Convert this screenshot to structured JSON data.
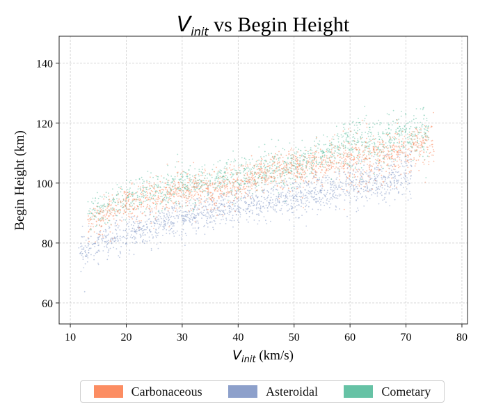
{
  "chart_data": {
    "type": "scatter",
    "title": "V_init vs Begin Height",
    "title_parts": {
      "symbol": "V",
      "subscript": "init",
      "rest": " vs Begin Height"
    },
    "xlabel": "V_init (km/s)",
    "xlabel_parts": {
      "symbol": "V",
      "subscript": "init",
      "rest": " (km/s)"
    },
    "ylabel": "Begin Height (km)",
    "xlim": [
      8,
      81
    ],
    "ylim": [
      53,
      149
    ],
    "xticks": [
      10,
      20,
      30,
      40,
      50,
      60,
      70,
      80
    ],
    "yticks": [
      60,
      80,
      100,
      120,
      140
    ],
    "grid": true,
    "legend_position": "bottom-center, below plot",
    "series": [
      {
        "name": "Asteroidal",
        "color": "#8da0cb",
        "trend": [
          [
            12,
            77
          ],
          [
            15,
            80
          ],
          [
            20,
            83
          ],
          [
            25,
            86
          ],
          [
            30,
            88.5
          ],
          [
            35,
            90.5
          ],
          [
            40,
            92
          ],
          [
            45,
            94
          ],
          [
            50,
            95.5
          ],
          [
            55,
            97
          ],
          [
            60,
            99
          ],
          [
            65,
            101
          ],
          [
            70,
            103
          ]
        ],
        "x_range": [
          11.5,
          71
        ]
      },
      {
        "name": "Carbonaceous",
        "color": "#fc8d62",
        "trend": [
          [
            13,
            86
          ],
          [
            15,
            89
          ],
          [
            20,
            93
          ],
          [
            25,
            95.5
          ],
          [
            30,
            97.5
          ],
          [
            35,
            97
          ],
          [
            40,
            100
          ],
          [
            45,
            103
          ],
          [
            50,
            105
          ],
          [
            55,
            106.5
          ],
          [
            60,
            107.5
          ],
          [
            65,
            109
          ],
          [
            70,
            111
          ],
          [
            74,
            113
          ]
        ],
        "x_range": [
          13,
          75
        ]
      },
      {
        "name": "Cometary",
        "color": "#66c2a5",
        "trend": [
          [
            13,
            89
          ],
          [
            15,
            91
          ],
          [
            20,
            95
          ],
          [
            25,
            97.5
          ],
          [
            30,
            99.5
          ],
          [
            35,
            100.5
          ],
          [
            40,
            102
          ],
          [
            45,
            104
          ],
          [
            50,
            106
          ],
          [
            55,
            109
          ],
          [
            60,
            113
          ],
          [
            65,
            114
          ],
          [
            70,
            116
          ],
          [
            74,
            116
          ]
        ],
        "x_range": [
          13,
          74
        ]
      }
    ]
  }
}
